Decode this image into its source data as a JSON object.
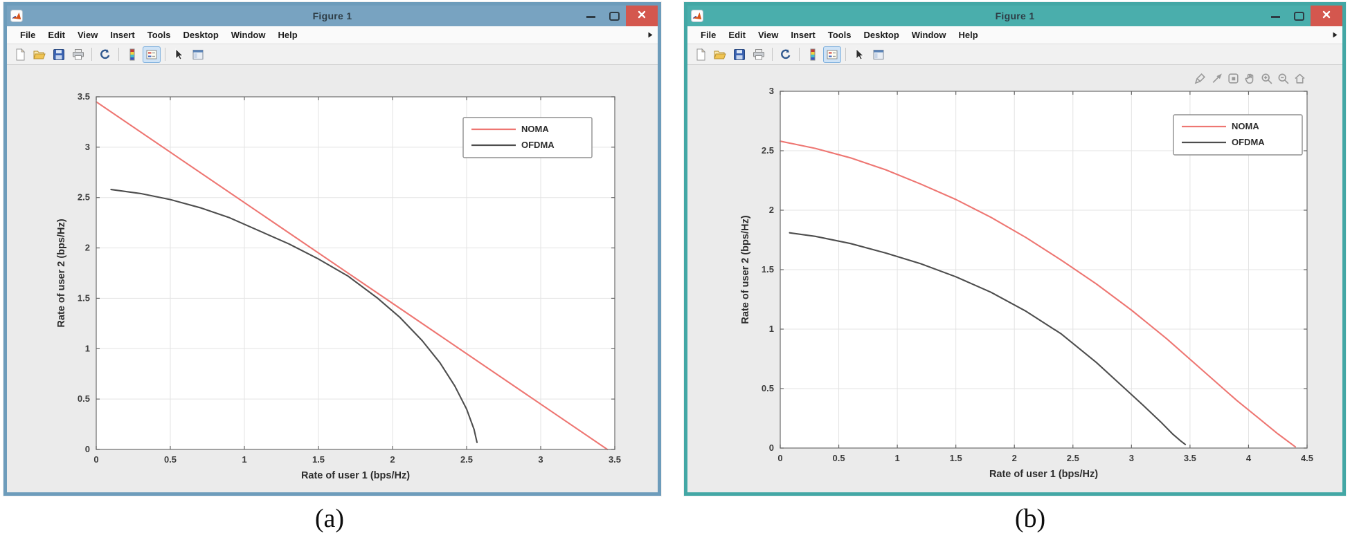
{
  "page": {
    "background": "#ffffff",
    "captions": {
      "a": "(a)",
      "b": "(b)"
    }
  },
  "windows": [
    {
      "name": "figure-a",
      "titlebar": {
        "title": "Figure 1",
        "app_icon": "matlab-logo",
        "accent_color": "#78a3c1",
        "frame_color": "#6d9cbb",
        "close_color": "#d4574e",
        "controls": [
          "minimize",
          "maximize",
          "close"
        ]
      },
      "menu": [
        "File",
        "Edit",
        "View",
        "Insert",
        "Tools",
        "Desktop",
        "Window",
        "Help"
      ],
      "menu_overflow_icon": "menu-overflow-arrow",
      "toolbar": [
        {
          "type": "button",
          "name": "new-figure"
        },
        {
          "type": "button",
          "name": "open-file"
        },
        {
          "type": "button",
          "name": "save-figure"
        },
        {
          "type": "button",
          "name": "print-figure"
        },
        {
          "type": "separator"
        },
        {
          "type": "button",
          "name": "rotate-3d"
        },
        {
          "type": "separator"
        },
        {
          "type": "button",
          "name": "insert-colorbar"
        },
        {
          "type": "button",
          "name": "insert-legend",
          "active": true
        },
        {
          "type": "separator"
        },
        {
          "type": "button",
          "name": "edit-plot"
        },
        {
          "type": "button",
          "name": "plot-tools"
        }
      ],
      "chart_data": {
        "type": "line",
        "title": "",
        "xlabel": "Rate of user 1 (bps/Hz)",
        "ylabel": "Rate of user 2 (bps/Hz)",
        "xlim": [
          0,
          3.5
        ],
        "ylim": [
          0,
          3.5
        ],
        "xticks": [
          0,
          0.5,
          1,
          1.5,
          2,
          2.5,
          3,
          3.5
        ],
        "yticks": [
          0,
          0.5,
          1,
          1.5,
          2,
          2.5,
          3,
          3.5
        ],
        "grid": true,
        "legend": {
          "position": "northeast",
          "entries": [
            "NOMA",
            "OFDMA"
          ]
        },
        "series": [
          {
            "name": "NOMA",
            "color": "#ee7672",
            "x": [
              0,
              3.45
            ],
            "y": [
              3.45,
              0
            ]
          },
          {
            "name": "OFDMA",
            "color": "#4d4d4d",
            "x": [
              0.1,
              0.3,
              0.5,
              0.7,
              0.9,
              1.1,
              1.3,
              1.5,
              1.7,
              1.9,
              2.05,
              2.2,
              2.32,
              2.42,
              2.5,
              2.55,
              2.57
            ],
            "y": [
              2.58,
              2.54,
              2.48,
              2.4,
              2.3,
              2.17,
              2.04,
              1.89,
              1.72,
              1.5,
              1.31,
              1.08,
              0.86,
              0.63,
              0.4,
              0.2,
              0.07
            ]
          }
        ]
      }
    },
    {
      "name": "figure-b",
      "titlebar": {
        "title": "Figure 1",
        "app_icon": "matlab-logo",
        "accent_color": "#4aaeac",
        "frame_color": "#43a7a5",
        "close_color": "#d4574e",
        "controls": [
          "minimize",
          "maximize",
          "close"
        ]
      },
      "menu": [
        "File",
        "Edit",
        "View",
        "Insert",
        "Tools",
        "Desktop",
        "Window",
        "Help"
      ],
      "menu_overflow_icon": "menu-overflow-arrow",
      "toolbar": [
        {
          "type": "button",
          "name": "new-figure"
        },
        {
          "type": "button",
          "name": "open-file"
        },
        {
          "type": "button",
          "name": "save-figure"
        },
        {
          "type": "button",
          "name": "print-figure"
        },
        {
          "type": "separator"
        },
        {
          "type": "button",
          "name": "rotate-3d"
        },
        {
          "type": "separator"
        },
        {
          "type": "button",
          "name": "insert-colorbar"
        },
        {
          "type": "button",
          "name": "insert-legend",
          "active": true
        },
        {
          "type": "separator"
        },
        {
          "type": "button",
          "name": "edit-plot"
        },
        {
          "type": "button",
          "name": "plot-tools"
        }
      ],
      "axes_toolbar": [
        "brush",
        "datatips",
        "export",
        "pan",
        "zoom-in",
        "zoom-out",
        "restore-view"
      ],
      "chart_data": {
        "type": "line",
        "title": "",
        "xlabel": "Rate of user 1 (bps/Hz)",
        "ylabel": "Rate of user 2 (bps/Hz)",
        "xlim": [
          0,
          4.5
        ],
        "ylim": [
          0,
          3
        ],
        "xticks": [
          0,
          0.5,
          1,
          1.5,
          2,
          2.5,
          3,
          3.5,
          4,
          4.5
        ],
        "yticks": [
          0,
          0.5,
          1,
          1.5,
          2,
          2.5,
          3
        ],
        "grid": true,
        "legend": {
          "position": "northeast",
          "entries": [
            "NOMA",
            "OFDMA"
          ]
        },
        "series": [
          {
            "name": "NOMA",
            "color": "#ee7672",
            "x": [
              0,
              0.3,
              0.6,
              0.9,
              1.2,
              1.5,
              1.8,
              2.1,
              2.4,
              2.7,
              3.0,
              3.3,
              3.6,
              3.9,
              4.1,
              4.25,
              4.4
            ],
            "y": [
              2.58,
              2.52,
              2.44,
              2.34,
              2.22,
              2.09,
              1.94,
              1.77,
              1.58,
              1.38,
              1.16,
              0.92,
              0.66,
              0.4,
              0.24,
              0.12,
              0.01
            ]
          },
          {
            "name": "OFDMA",
            "color": "#4d4d4d",
            "x": [
              0.08,
              0.3,
              0.6,
              0.9,
              1.2,
              1.5,
              1.8,
              2.1,
              2.4,
              2.7,
              2.9,
              3.1,
              3.25,
              3.35,
              3.42,
              3.46
            ],
            "y": [
              1.81,
              1.78,
              1.72,
              1.64,
              1.55,
              1.44,
              1.31,
              1.15,
              0.96,
              0.72,
              0.54,
              0.36,
              0.22,
              0.12,
              0.06,
              0.03
            ]
          }
        ]
      }
    }
  ]
}
